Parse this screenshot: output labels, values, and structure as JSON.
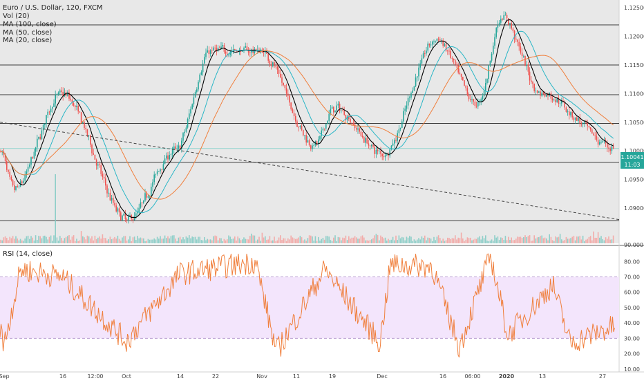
{
  "legend": {
    "symbol": "Euro / U.S. Dollar, 120, FXCM",
    "vol": "Vol (20)",
    "ma100": "MA (100, close)",
    "ma50": "MA (50, close)",
    "ma20": "MA (20, close)",
    "rsi": "RSI (14, close)"
  },
  "colors": {
    "up": "#26a69a",
    "down": "#ef5350",
    "ma20": "#000000",
    "ma50": "#29b6c6",
    "ma100": "#f07f3c",
    "rsi": "#f07f3c",
    "rsi_band": "#f3e5fc",
    "pane_bg": "#e8e8e8",
    "price_label_bg": "#26a69a"
  },
  "price_scale": {
    "ticks": [
      "1.12500",
      "1.12000",
      "1.11500",
      "1.11000",
      "1.10500",
      "1.10000",
      "1.09500",
      "1.09000",
      "90.000"
    ],
    "last_price": "1.10041",
    "countdown": "11:03"
  },
  "rsi_scale": {
    "ticks": [
      "80.00",
      "70.00",
      "60.00",
      "50.00",
      "40.00",
      "30.00",
      "20.00",
      "10.00"
    ]
  },
  "time_axis": [
    "Sep",
    "16",
    "12:00",
    "Oct",
    "14",
    "22",
    "Nov",
    "11",
    "19",
    "Dec",
    "16",
    "06:00",
    "2020",
    "13",
    "27"
  ],
  "chart_data": [
    {
      "type": "candlestick",
      "title": "Euro / U.S. Dollar, 120, FXCM",
      "ylim": [
        1.0865,
        1.1255
      ],
      "key_prices": [
        {
          "time": "Sep",
          "price": 1.1
        },
        {
          "time": "Sep mid",
          "price": 1.093
        },
        {
          "time": "16",
          "price": 1.11
        },
        {
          "time": "Oct",
          "price": 1.088
        },
        {
          "time": "14",
          "price": 1.1
        },
        {
          "time": "22",
          "price": 1.1175
        },
        {
          "time": "Nov",
          "price": 1.1175
        },
        {
          "time": "11",
          "price": 1.101
        },
        {
          "time": "19",
          "price": 1.1075
        },
        {
          "time": "Dec",
          "price": 1.0995
        },
        {
          "time": "16",
          "price": 1.1195
        },
        {
          "time": "06:00",
          "price": 1.108
        },
        {
          "time": "2020",
          "price": 1.1235
        },
        {
          "time": "13",
          "price": 1.11
        },
        {
          "time": "27",
          "price": 1.1005
        }
      ],
      "last_value": 1.10041,
      "horizontal_lines": [
        1.122,
        1.115,
        1.1098,
        1.1048,
        1.098,
        1.0878
      ],
      "trend_line": [
        {
          "time": "Sep",
          "price": 1.105
        },
        {
          "time": "end",
          "price": 1.088
        }
      ]
    },
    {
      "type": "line",
      "title": "RSI (14, close)",
      "ylim": [
        9,
        86
      ],
      "band": [
        30,
        70
      ],
      "key_values": [
        {
          "time": "Sep",
          "value": 22
        },
        {
          "time": "Sep",
          "value": 75
        },
        {
          "time": "16",
          "value": 70
        },
        {
          "time": "Oct",
          "value": 28
        },
        {
          "time": "14",
          "value": 72
        },
        {
          "time": "22",
          "value": 75
        },
        {
          "time": "Nov",
          "value": 80
        },
        {
          "time": "Nov",
          "value": 21
        },
        {
          "time": "19",
          "value": 75
        },
        {
          "time": "Dec",
          "value": 27
        },
        {
          "time": "Dec",
          "value": 78
        },
        {
          "time": "16",
          "value": 77
        },
        {
          "time": "06:00",
          "value": 24
        },
        {
          "time": "2020",
          "value": 84
        },
        {
          "time": "2020",
          "value": 32
        },
        {
          "time": "13",
          "value": 65
        },
        {
          "time": "27",
          "value": 27
        },
        {
          "time": "27",
          "value": 38
        }
      ]
    }
  ]
}
